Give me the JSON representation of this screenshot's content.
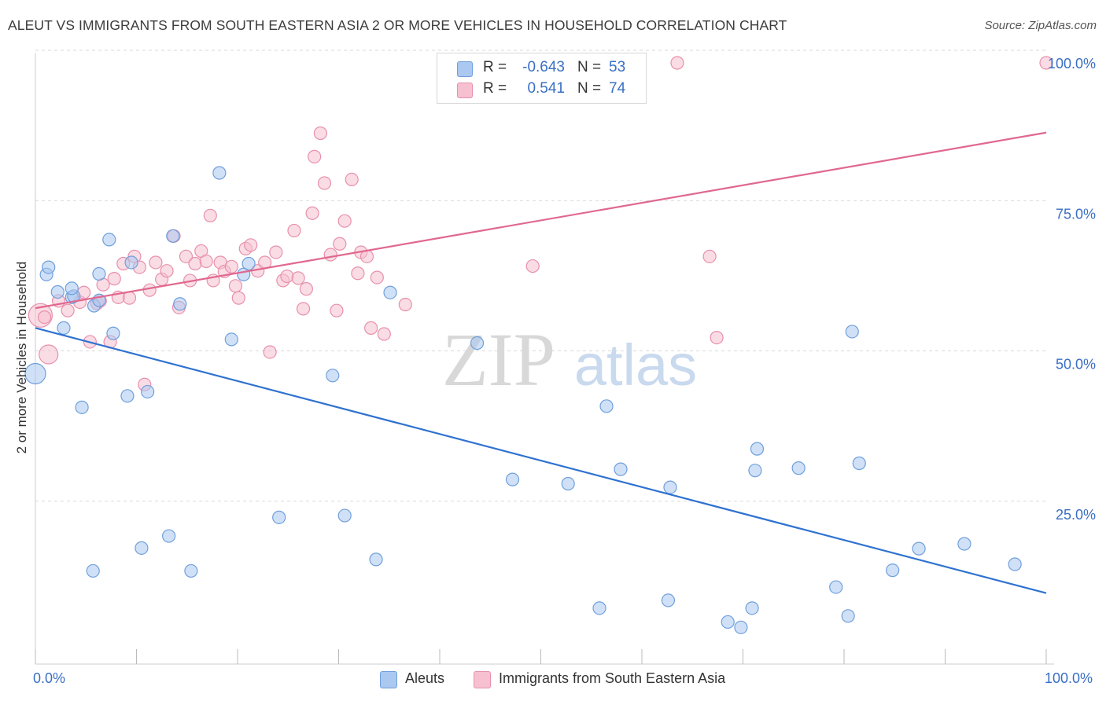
{
  "title": "ALEUT VS IMMIGRANTS FROM SOUTH EASTERN ASIA 2 OR MORE VEHICLES IN HOUSEHOLD CORRELATION CHART",
  "source": "Source: ZipAtlas.com",
  "watermark": {
    "zip": "ZIP",
    "atlas": "atlas"
  },
  "legend_top": {
    "rows": [
      {
        "r_label": "R =",
        "r_value": "-0.643",
        "n_label": "N =",
        "n_value": "53"
      },
      {
        "r_label": "R =",
        "r_value": "0.541",
        "n_label": "N =",
        "n_value": "74"
      }
    ]
  },
  "legend_bottom": {
    "series1": "Aleuts",
    "series2": "Immigrants from South Eastern Asia"
  },
  "colors": {
    "blue_fill": "#aac8f0",
    "blue_stroke": "#6f9fdc",
    "blue_line": "#2f72d0",
    "pink_fill": "#f6c0d0",
    "pink_stroke": "#e890ac",
    "pink_line": "#e0688f",
    "grid": "#d9d9d9",
    "tick_label": "#3a6fc4"
  },
  "chart_data": {
    "type": "scatter",
    "title": "ALEUT VS IMMIGRANTS FROM SOUTH EASTERN ASIA 2 OR MORE VEHICLES IN HOUSEHOLD CORRELATION CHART",
    "xlabel": "",
    "ylabel": "2 or more Vehicles in Household",
    "xlim": [
      0,
      100
    ],
    "ylim": [
      0,
      100
    ],
    "x_tick_labels": [
      "0.0%",
      "100.0%"
    ],
    "y_tick_labels": [
      "25.0%",
      "50.0%",
      "75.0%",
      "100.0%"
    ],
    "y_ticks": [
      25,
      50,
      75,
      100
    ],
    "grid": true,
    "legend_position": "top-center",
    "series": [
      {
        "name": "Aleuts",
        "color": "#6f9fdc",
        "trend": {
          "x": [
            0,
            100
          ],
          "y": [
            55.9,
            11.8
          ]
        },
        "points": [
          [
            0,
            48.3,
            13
          ],
          [
            1.1,
            64.8,
            8
          ],
          [
            1.3,
            66.0,
            8
          ],
          [
            2.2,
            61.9,
            8
          ],
          [
            2.8,
            55.9,
            8
          ],
          [
            3.6,
            61.0,
            8
          ],
          [
            3.8,
            61.2,
            8
          ],
          [
            3.6,
            62.5,
            8
          ],
          [
            4.6,
            42.7,
            8
          ],
          [
            5.7,
            15.5,
            8
          ],
          [
            5.8,
            59.6,
            8
          ],
          [
            6.3,
            60.5,
            8
          ],
          [
            6.3,
            64.9,
            8
          ],
          [
            7.3,
            70.6,
            8
          ],
          [
            7.7,
            55.0,
            8
          ],
          [
            9.1,
            44.6,
            8
          ],
          [
            9.5,
            66.8,
            8
          ],
          [
            10.5,
            19.3,
            8
          ],
          [
            11.1,
            45.3,
            8
          ],
          [
            13.2,
            21.3,
            8
          ],
          [
            13.6,
            71.2,
            8
          ],
          [
            14.3,
            59.9,
            8
          ],
          [
            15.4,
            15.5,
            8
          ],
          [
            18.2,
            81.7,
            8
          ],
          [
            19.4,
            54.0,
            8
          ],
          [
            20.6,
            64.8,
            8
          ],
          [
            21.1,
            66.6,
            8
          ],
          [
            24.1,
            24.4,
            8
          ],
          [
            29.4,
            48.0,
            8
          ],
          [
            30.6,
            24.7,
            8
          ],
          [
            33.7,
            17.4,
            8
          ],
          [
            35.1,
            61.8,
            8
          ],
          [
            43.7,
            53.4,
            8
          ],
          [
            47.2,
            30.7,
            8
          ],
          [
            52.7,
            30.0,
            8
          ],
          [
            55.8,
            9.3,
            8
          ],
          [
            56.5,
            42.9,
            8
          ],
          [
            57.9,
            32.4,
            8
          ],
          [
            62.6,
            10.6,
            8
          ],
          [
            62.8,
            29.4,
            8
          ],
          [
            68.5,
            7.0,
            8
          ],
          [
            69.8,
            6.1,
            8
          ],
          [
            70.9,
            9.3,
            8
          ],
          [
            71.2,
            32.2,
            8
          ],
          [
            71.4,
            35.8,
            8
          ],
          [
            75.5,
            32.6,
            8
          ],
          [
            79.2,
            12.8,
            8
          ],
          [
            80.4,
            8.0,
            8
          ],
          [
            80.8,
            55.3,
            8
          ],
          [
            81.5,
            33.4,
            8
          ],
          [
            84.8,
            15.6,
            8
          ],
          [
            87.4,
            19.2,
            8
          ],
          [
            91.9,
            20.0,
            8
          ],
          [
            96.9,
            16.6,
            8
          ]
        ]
      },
      {
        "name": "Immigrants from South Eastern Asia",
        "color": "#e890ac",
        "trend": {
          "x": [
            0,
            100
          ],
          "y": [
            59.2,
            88.4
          ]
        },
        "points": [
          [
            0.5,
            58.0,
            15
          ],
          [
            0.9,
            57.7,
            8
          ],
          [
            1.3,
            51.5,
            12
          ],
          [
            2.3,
            60.4,
            8
          ],
          [
            3.2,
            58.8,
            8
          ],
          [
            4.4,
            60.2,
            8
          ],
          [
            4.8,
            61.8,
            8
          ],
          [
            5.4,
            53.6,
            8
          ],
          [
            6.1,
            60.0,
            8
          ],
          [
            6.4,
            60.4,
            8
          ],
          [
            6.7,
            63.1,
            8
          ],
          [
            7.4,
            53.6,
            8
          ],
          [
            7.8,
            64.1,
            8
          ],
          [
            8.2,
            61.0,
            8
          ],
          [
            8.7,
            66.6,
            8
          ],
          [
            9.3,
            60.9,
            8
          ],
          [
            9.8,
            67.8,
            8
          ],
          [
            10.3,
            66.0,
            8
          ],
          [
            10.8,
            46.5,
            8
          ],
          [
            11.3,
            62.2,
            8
          ],
          [
            11.9,
            66.8,
            8
          ],
          [
            12.5,
            64.0,
            8
          ],
          [
            13.0,
            65.4,
            8
          ],
          [
            13.7,
            71.2,
            8
          ],
          [
            14.2,
            59.3,
            8
          ],
          [
            14.9,
            67.8,
            8
          ],
          [
            15.3,
            63.8,
            8
          ],
          [
            15.8,
            66.6,
            8
          ],
          [
            16.4,
            68.7,
            8
          ],
          [
            16.9,
            67.0,
            8
          ],
          [
            17.3,
            74.6,
            8
          ],
          [
            17.6,
            63.8,
            8
          ],
          [
            18.3,
            66.8,
            8
          ],
          [
            18.7,
            65.3,
            8
          ],
          [
            19.4,
            66.1,
            8
          ],
          [
            19.8,
            62.9,
            8
          ],
          [
            20.1,
            60.9,
            8
          ],
          [
            20.8,
            69.1,
            8
          ],
          [
            21.3,
            69.7,
            8
          ],
          [
            22.0,
            65.4,
            8
          ],
          [
            22.7,
            66.8,
            8
          ],
          [
            23.2,
            51.9,
            8
          ],
          [
            23.8,
            68.5,
            8
          ],
          [
            24.5,
            63.8,
            8
          ],
          [
            24.9,
            64.5,
            8
          ],
          [
            25.6,
            72.1,
            8
          ],
          [
            26.0,
            64.2,
            8
          ],
          [
            26.5,
            59.1,
            8
          ],
          [
            26.8,
            62.4,
            8
          ],
          [
            27.4,
            75.0,
            8
          ],
          [
            27.6,
            84.4,
            8
          ],
          [
            28.2,
            88.3,
            8
          ],
          [
            28.6,
            80.0,
            8
          ],
          [
            29.2,
            68.1,
            8
          ],
          [
            29.8,
            58.8,
            8
          ],
          [
            30.1,
            69.9,
            8
          ],
          [
            30.6,
            73.7,
            8
          ],
          [
            31.3,
            80.6,
            8
          ],
          [
            31.9,
            65.0,
            8
          ],
          [
            32.2,
            68.5,
            8
          ],
          [
            32.8,
            67.8,
            8
          ],
          [
            33.2,
            55.9,
            8
          ],
          [
            33.8,
            64.3,
            8
          ],
          [
            34.5,
            54.9,
            8
          ],
          [
            36.6,
            59.8,
            8
          ],
          [
            49.2,
            66.2,
            8
          ],
          [
            63.5,
            100.0,
            8
          ],
          [
            66.7,
            67.8,
            8
          ],
          [
            67.4,
            54.3,
            8
          ],
          [
            100.0,
            100.0,
            8
          ]
        ]
      }
    ]
  }
}
